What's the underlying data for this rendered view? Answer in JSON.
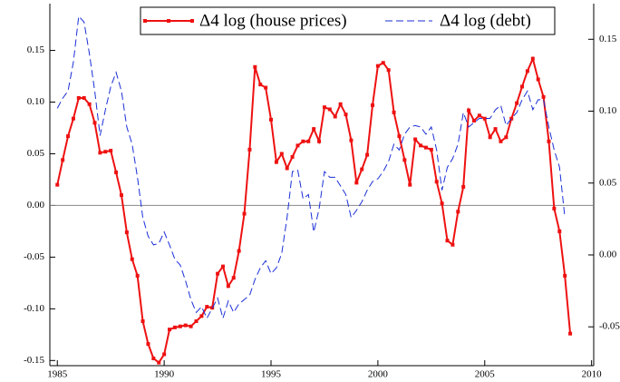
{
  "chart_data": {
    "type": "line",
    "x": [
      1985,
      1985.25,
      1985.5,
      1985.75,
      1986,
      1986.25,
      1986.5,
      1986.75,
      1987,
      1987.25,
      1987.5,
      1987.75,
      1988,
      1988.25,
      1988.5,
      1988.75,
      1989,
      1989.25,
      1989.5,
      1989.75,
      1990,
      1990.25,
      1990.5,
      1990.75,
      1991,
      1991.25,
      1991.5,
      1991.75,
      1992,
      1992.25,
      1992.5,
      1992.75,
      1993,
      1993.25,
      1993.5,
      1993.75,
      1994,
      1994.25,
      1994.5,
      1994.75,
      1995,
      1995.25,
      1995.5,
      1995.75,
      1996,
      1996.25,
      1996.5,
      1996.75,
      1997,
      1997.25,
      1997.5,
      1997.75,
      1998,
      1998.25,
      1998.5,
      1998.75,
      1999,
      1999.25,
      1999.5,
      1999.75,
      2000,
      2000.25,
      2000.5,
      2000.75,
      2001,
      2001.25,
      2001.5,
      2001.75,
      2002,
      2002.25,
      2002.5,
      2002.75,
      2003,
      2003.25,
      2003.5,
      2003.75,
      2004,
      2004.25,
      2004.5,
      2004.75,
      2005,
      2005.25,
      2005.5,
      2005.75,
      2006,
      2006.25,
      2006.5,
      2006.75,
      2007,
      2007.25,
      2007.5,
      2007.75,
      2008,
      2008.25,
      2008.5,
      2008.75,
      2009
    ],
    "series": [
      {
        "name": "Δ4 log (house prices)",
        "color": "#ee1111",
        "style": "solid",
        "markers": true,
        "values": [
          0.02,
          0.044,
          0.067,
          0.084,
          0.104,
          0.104,
          0.098,
          0.08,
          0.051,
          0.052,
          0.053,
          0.032,
          0.01,
          -0.026,
          -0.052,
          -0.068,
          -0.112,
          -0.134,
          -0.148,
          -0.152,
          -0.144,
          -0.12,
          -0.118,
          -0.117,
          -0.116,
          -0.117,
          -0.112,
          -0.107,
          -0.098,
          -0.099,
          -0.066,
          -0.059,
          -0.078,
          -0.07,
          -0.044,
          -0.008,
          0.054,
          0.134,
          0.117,
          0.114,
          0.083,
          0.042,
          0.05,
          0.036,
          0.047,
          0.058,
          0.062,
          0.062,
          0.074,
          0.062,
          0.095,
          0.093,
          0.086,
          0.098,
          0.088,
          0.063,
          0.022,
          0.035,
          0.049,
          0.097,
          0.135,
          0.138,
          0.131,
          0.09,
          0.067,
          0.044,
          0.02,
          0.064,
          0.058,
          0.056,
          0.054,
          0.023,
          0.002,
          -0.034,
          -0.038,
          -0.006,
          0.018,
          0.092,
          0.082,
          0.087,
          0.084,
          0.066,
          0.074,
          0.062,
          0.066,
          0.084,
          0.099,
          0.115,
          0.13,
          0.142,
          0.122,
          0.105,
          0.062,
          -0.003,
          -0.025,
          -0.068,
          -0.124
        ]
      },
      {
        "name": "Δ4 log (debt)",
        "color": "#1a2fd6",
        "style": "dashed",
        "markers": false,
        "axis": "y2",
        "values": [
          0.102,
          0.109,
          0.114,
          0.134,
          0.166,
          0.162,
          0.14,
          0.114,
          0.083,
          0.101,
          0.117,
          0.127,
          0.114,
          0.089,
          0.077,
          0.054,
          0.026,
          0.013,
          0.007,
          0.008,
          0.016,
          0.007,
          -0.003,
          -0.007,
          -0.018,
          -0.031,
          -0.04,
          -0.036,
          -0.044,
          -0.037,
          -0.03,
          -0.044,
          -0.032,
          -0.04,
          -0.034,
          -0.031,
          -0.028,
          -0.017,
          -0.009,
          -0.004,
          -0.013,
          -0.009,
          0.001,
          0.026,
          0.058,
          0.059,
          0.039,
          0.042,
          0.016,
          0.032,
          0.058,
          0.054,
          0.054,
          0.048,
          0.042,
          0.026,
          0.031,
          0.037,
          0.045,
          0.051,
          0.053,
          0.058,
          0.065,
          0.077,
          0.073,
          0.084,
          0.089,
          0.09,
          0.089,
          0.084,
          0.089,
          0.073,
          0.045,
          0.061,
          0.067,
          0.077,
          0.099,
          0.089,
          0.092,
          0.095,
          0.095,
          0.095,
          0.101,
          0.104,
          0.09,
          0.095,
          0.099,
          0.108,
          0.114,
          0.101,
          0.108,
          0.108,
          0.089,
          0.073,
          0.061,
          0.026,
          null
        ]
      }
    ],
    "xlim": [
      1984.65,
      2010.1
    ],
    "xticks": [
      1985,
      1990,
      1995,
      2000,
      2005,
      2010
    ],
    "ylim": [
      -0.155,
      0.19
    ],
    "yticks": [
      -0.15,
      {
        "value": -0.1,
        "label": "-0.10"
      },
      -0.05,
      {
        "value": 0,
        "label": "0.00"
      },
      0.05,
      {
        "value": 0.1,
        "label": "0.10"
      },
      0.15
    ],
    "y2lim": [
      -0.077,
      0.171
    ],
    "y2ticks": [
      -0.05,
      {
        "value": 0,
        "label": "0.00"
      },
      0.05,
      {
        "value": 0.1,
        "label": "0.10"
      },
      0.15
    ],
    "zero_line": true,
    "legend": "top"
  }
}
